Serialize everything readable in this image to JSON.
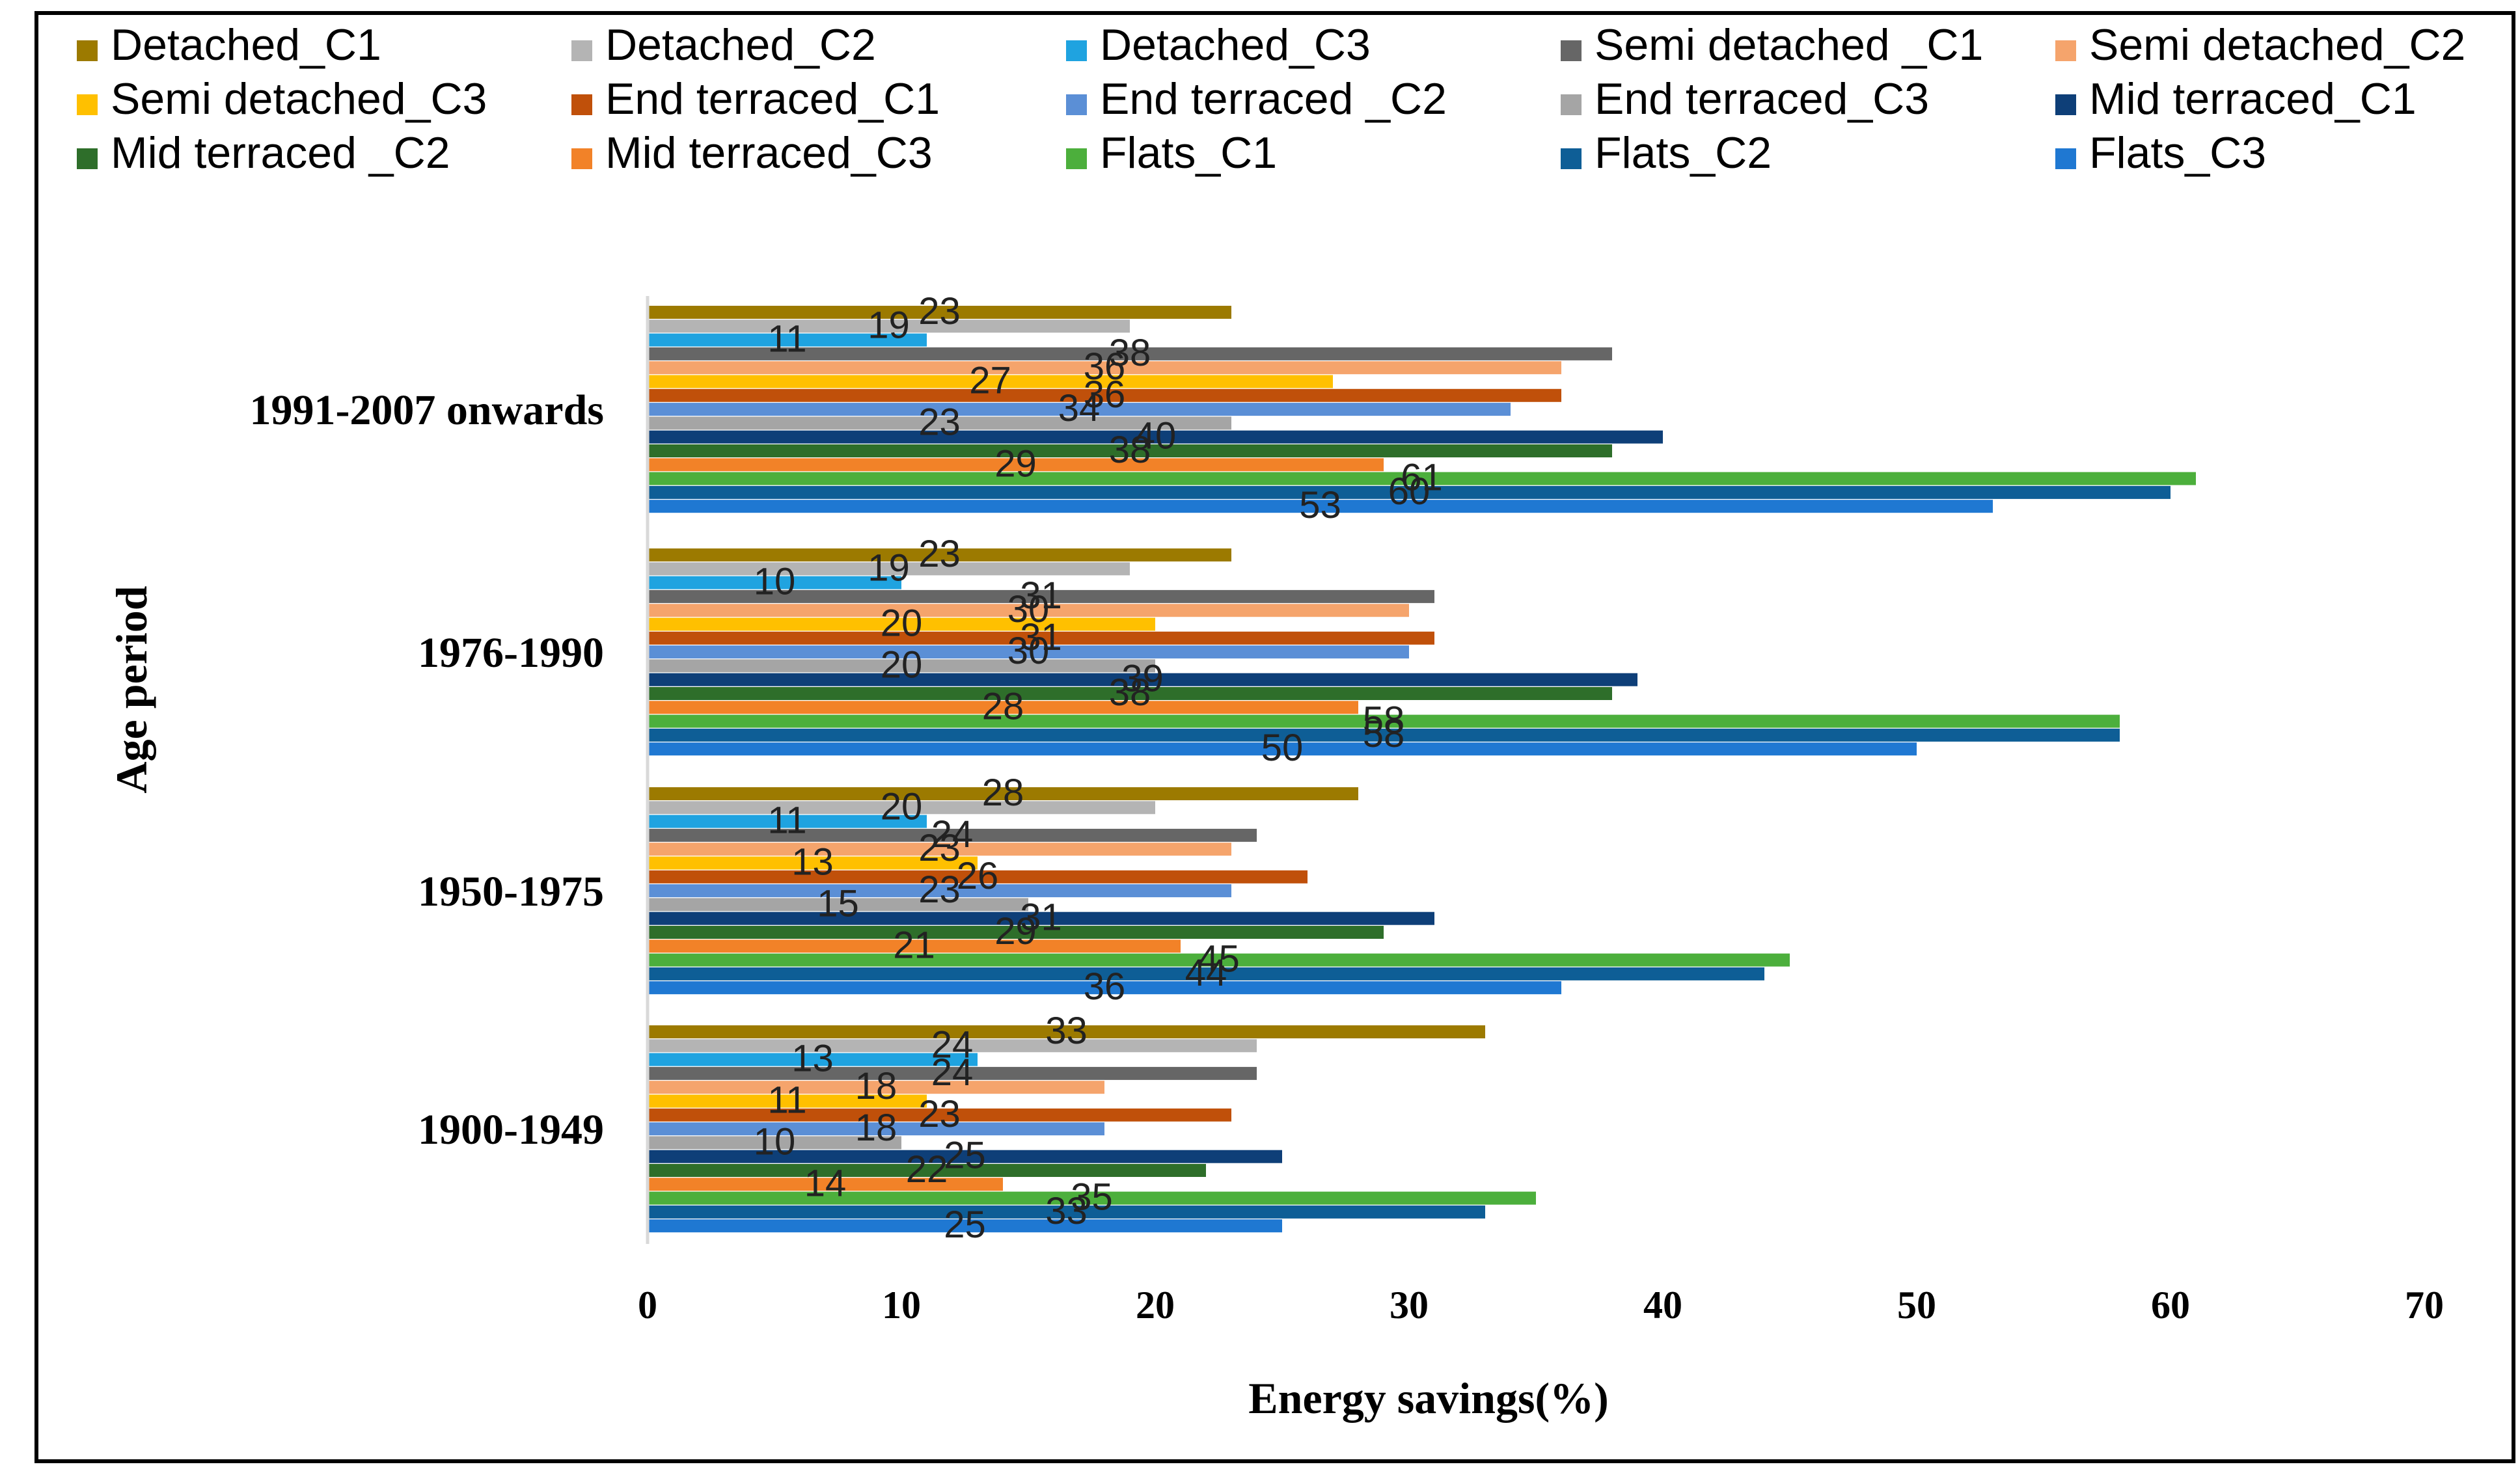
{
  "chart_data": {
    "type": "bar",
    "orientation": "horizontal",
    "title": "",
    "xlabel": "Energy savings(%)",
    "ylabel": "Age period",
    "xlim": [
      0,
      70
    ],
    "xticks": [
      "0",
      "10",
      "20",
      "30",
      "40",
      "50",
      "60",
      "70"
    ],
    "grid": false,
    "legend_position": "top",
    "categories": [
      "1991-2007 onwards",
      "1976-1990",
      "1950-1975",
      "1900-1949"
    ],
    "series": [
      {
        "name": "Detached_C1",
        "color": "#9C7A00",
        "values": [
          23,
          23,
          28,
          33
        ]
      },
      {
        "name": "Detached_C2",
        "color": "#B4B4B4",
        "values": [
          19,
          19,
          20,
          24
        ]
      },
      {
        "name": "Detached_C3",
        "color": "#1FA3E0",
        "values": [
          11,
          10,
          11,
          13
        ]
      },
      {
        "name": "Semi detached _C1",
        "color": "#666666",
        "values": [
          38,
          31,
          24,
          24
        ]
      },
      {
        "name": "Semi detached_C2",
        "color": "#F5A46C",
        "values": [
          36,
          30,
          23,
          18
        ]
      },
      {
        "name": "Semi detached_C3",
        "color": "#FFC000",
        "values": [
          27,
          20,
          13,
          11
        ]
      },
      {
        "name": "End terraced_C1",
        "color": "#C0500A",
        "values": [
          36,
          31,
          26,
          23
        ]
      },
      {
        "name": "End terraced _C2",
        "color": "#5B8FD6",
        "values": [
          34,
          30,
          23,
          18
        ]
      },
      {
        "name": "End terraced_C3",
        "color": "#A5A5A5",
        "values": [
          23,
          20,
          15,
          10
        ]
      },
      {
        "name": "Mid terraced_C1",
        "color": "#0E3F78",
        "values": [
          40,
          39,
          31,
          25
        ]
      },
      {
        "name": "Mid terraced _C2",
        "color": "#2E6E2A",
        "values": [
          38,
          38,
          29,
          22
        ]
      },
      {
        "name": "Mid terraced_C3",
        "color": "#F28228",
        "values": [
          29,
          28,
          21,
          14
        ]
      },
      {
        "name": "Flats_C1",
        "color": "#4CAF3C",
        "values": [
          61,
          58,
          45,
          35
        ]
      },
      {
        "name": "Flats_C2",
        "color": "#0E5E96",
        "values": [
          60,
          58,
          44,
          33
        ]
      },
      {
        "name": "Flats_C3",
        "color": "#1F78D2",
        "values": [
          53,
          50,
          36,
          25
        ]
      }
    ]
  }
}
